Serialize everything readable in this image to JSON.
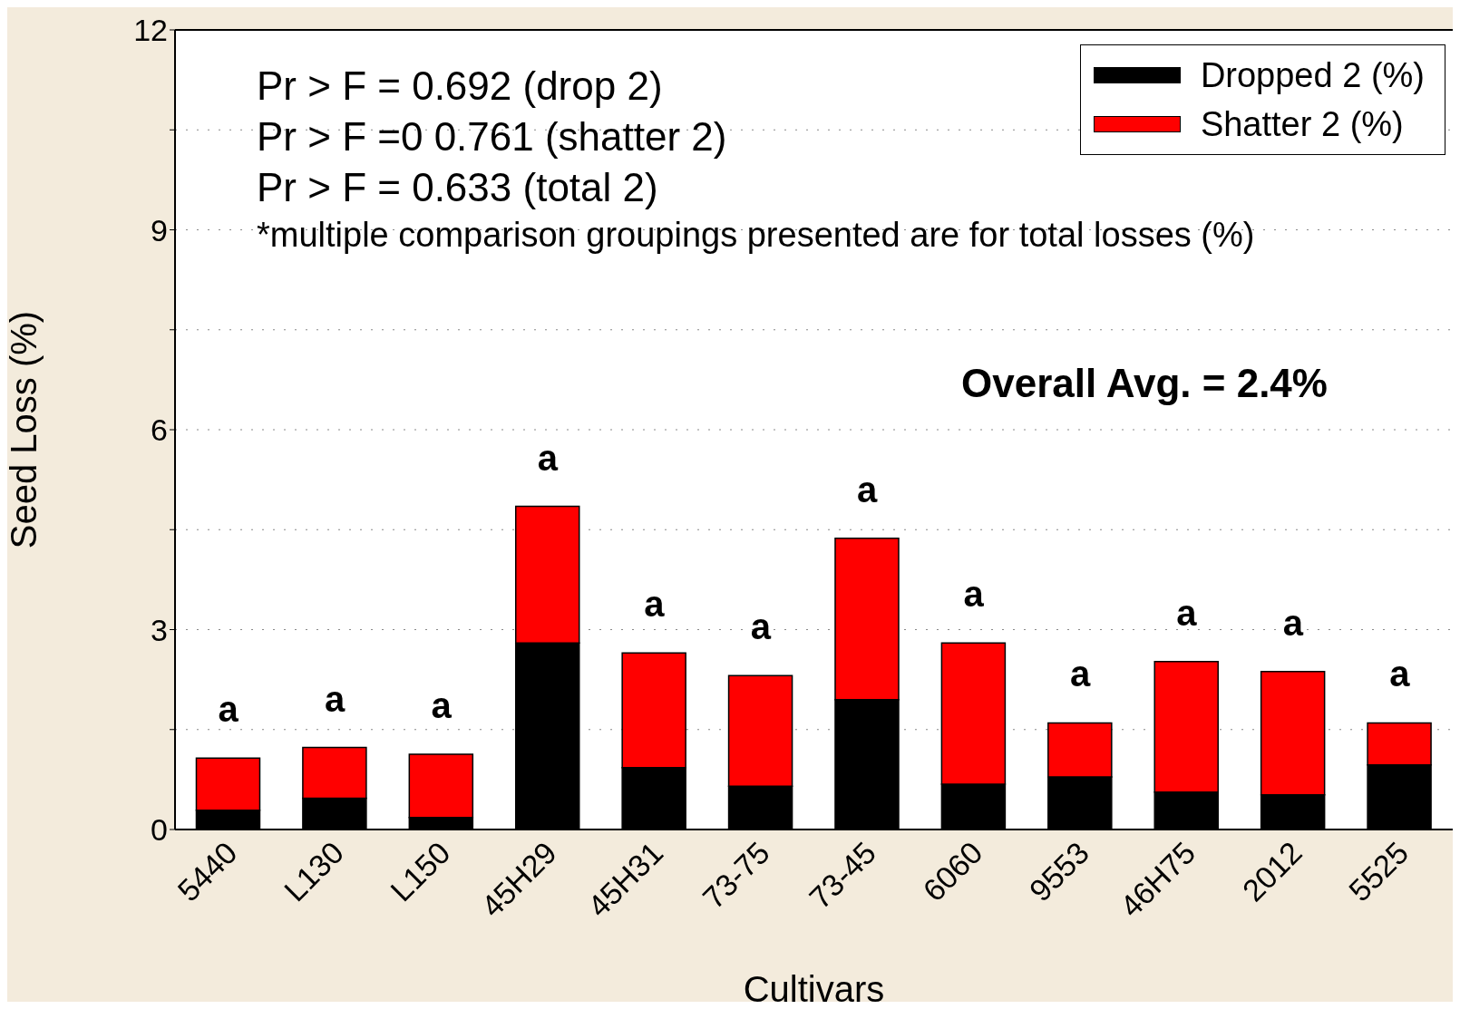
{
  "chart_data": {
    "type": "bar",
    "stacked": true,
    "xlabel": "Cultivars",
    "ylabel": "Seed Loss (%)",
    "categories": [
      "5440",
      "L130",
      "L150",
      "45H29",
      "45H31",
      "73-75",
      "73-45",
      "6060",
      "9553",
      "46H75",
      "2012",
      "5525"
    ],
    "series": [
      {
        "name": "Dropped 2 (%)",
        "color": "#000000",
        "values": [
          0.29,
          0.47,
          0.18,
          2.8,
          0.93,
          0.65,
          1.95,
          0.68,
          0.79,
          0.56,
          0.52,
          0.97
        ]
      },
      {
        "name": "Shatter 2 (%)",
        "color": "#ff0000",
        "values": [
          0.78,
          0.76,
          0.95,
          2.05,
          1.72,
          1.66,
          2.42,
          2.12,
          0.81,
          1.96,
          1.85,
          0.63
        ]
      }
    ],
    "ylim": [
      0,
      12
    ],
    "yticks": [
      0,
      {
        "value": 1.5,
        "label": null
      },
      3,
      {
        "value": 4.5,
        "label": null
      },
      6,
      {
        "value": 7.5,
        "label": null
      },
      9,
      {
        "value": 10.5,
        "label": null
      },
      12
    ],
    "grid": "y",
    "legend": "top right",
    "annotations": [
      "Pr > F = 0.692 (drop 2)",
      "Pr > F =0 0.761 (shatter 2)",
      "Pr > F = 0.633 (total 2)",
      "*multiple comparison groupings presented are for total losses (%)",
      "Overall Avg. = 2.4%",
      {
        "text": "a",
        "x": "5440",
        "y": 1.07
      },
      {
        "text": "a",
        "x": "L130",
        "y": 1.23
      },
      {
        "text": "a",
        "x": "L150",
        "y": 1.13
      },
      {
        "text": "a",
        "x": "45H29",
        "y": 4.85
      },
      {
        "text": "a",
        "x": "45H31",
        "y": 2.65
      },
      {
        "text": "a",
        "x": "73-75",
        "y": 2.31
      },
      {
        "text": "a",
        "x": "73-45",
        "y": 4.37
      },
      {
        "text": "a",
        "x": "6060",
        "y": 2.8
      },
      {
        "text": "a",
        "x": "9553",
        "y": 1.6
      },
      {
        "text": "a",
        "x": "46H75",
        "y": 2.52
      },
      {
        "text": "a",
        "x": "2012",
        "y": 2.37
      },
      {
        "text": "a",
        "x": "5525",
        "y": 1.6
      }
    ]
  }
}
